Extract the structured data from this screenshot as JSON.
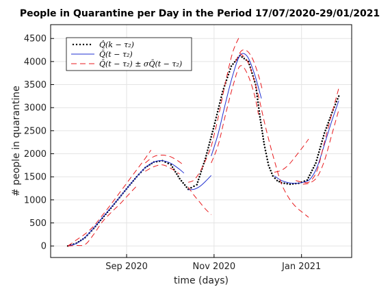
{
  "chart_data": {
    "type": "line",
    "title": "People in Quarantine per Day in the Period 17/07/2020-29/01/2021",
    "xlabel": "time (days)",
    "ylabel": "# people in quarantine",
    "x_ticks": [
      "Sep 2020",
      "Nov 2020",
      "Jan 2021"
    ],
    "y_ticks": [
      0,
      500,
      1000,
      1500,
      2000,
      2500,
      3000,
      3500,
      4000,
      4500
    ],
    "ylim": [
      -250,
      4800
    ],
    "grid": true,
    "legend_position": "top-left",
    "legend": [
      {
        "label": "Q̂(k − τ₂)",
        "style": "dotted",
        "color": "#000000"
      },
      {
        "label": "Q̄(t − τ₂)",
        "style": "solid",
        "color": "#1f2fd0"
      },
      {
        "label": "Q̄(t − τ₂) ± σQ̄(t − τ₂)",
        "style": "dashed",
        "color": "#e8191c"
      }
    ],
    "series": [
      {
        "style": "dotted",
        "color": "#000000",
        "x": [
          "2020-07-22",
          "2020-07-28",
          "2020-08-03",
          "2020-08-09",
          "2020-08-15",
          "2020-08-21",
          "2020-08-27",
          "2020-09-02",
          "2020-09-08",
          "2020-09-14",
          "2020-09-20",
          "2020-09-26",
          "2020-10-02",
          "2020-10-08",
          "2020-10-14",
          "2020-10-20",
          "2020-10-26",
          "2020-11-01",
          "2020-11-07",
          "2020-11-13",
          "2020-11-19",
          "2020-11-25",
          "2020-11-30",
          "2020-12-03",
          "2020-12-06",
          "2020-12-09",
          "2020-12-12",
          "2020-12-15",
          "2020-12-18",
          "2020-12-24",
          "2020-12-30",
          "2021-01-05",
          "2021-01-11",
          "2021-01-17",
          "2021-01-23",
          "2021-01-27"
        ],
        "y": [
          0,
          60,
          180,
          380,
          600,
          820,
          1050,
          1280,
          1500,
          1700,
          1820,
          1850,
          1760,
          1460,
          1230,
          1330,
          1900,
          2600,
          3350,
          3900,
          4130,
          4000,
          3500,
          2800,
          2200,
          1750,
          1520,
          1420,
          1370,
          1340,
          1360,
          1430,
          1800,
          2450,
          2950,
          3250
        ]
      },
      {
        "style": "solid",
        "color": "#1f2fd0",
        "x": [
          "2020-07-22",
          "2020-07-28",
          "2020-08-03",
          "2020-08-09",
          "2020-08-15",
          "2020-08-21",
          "2020-08-27",
          "2020-09-02",
          "2020-09-08",
          "2020-09-14",
          "2020-09-20",
          "2020-09-26",
          "2020-10-02",
          "2020-10-08",
          "2020-10-11"
        ],
        "y": [
          0,
          55,
          190,
          390,
          610,
          830,
          1050,
          1280,
          1500,
          1700,
          1820,
          1850,
          1790,
          1660,
          1580
        ]
      },
      {
        "style": "solid",
        "color": "#1f2fd0",
        "x": [
          "2020-10-14",
          "2020-10-18",
          "2020-10-22",
          "2020-10-26",
          "2020-10-30"
        ],
        "y": [
          1220,
          1230,
          1290,
          1400,
          1530
        ]
      },
      {
        "style": "solid",
        "color": "#1f2fd0",
        "x": [
          "2020-10-30",
          "2020-11-04",
          "2020-11-09",
          "2020-11-14",
          "2020-11-19",
          "2020-11-24",
          "2020-11-29",
          "2020-12-04"
        ],
        "y": [
          1950,
          2450,
          3100,
          3700,
          4130,
          4120,
          3750,
          3200
        ]
      },
      {
        "style": "solid",
        "color": "#1f2fd0",
        "x": [
          "2020-12-13",
          "2020-12-18",
          "2020-12-23",
          "2020-12-28",
          "2021-01-02",
          "2021-01-07",
          "2021-01-12",
          "2021-01-17",
          "2021-01-22",
          "2021-01-27"
        ],
        "y": [
          1520,
          1420,
          1370,
          1360,
          1380,
          1450,
          1720,
          2200,
          2700,
          3150
        ]
      },
      {
        "style": "dashed",
        "color": "#e8191c",
        "x": [
          "2020-07-22",
          "2020-07-28",
          "2020-08-03",
          "2020-08-09",
          "2020-08-15",
          "2020-08-21",
          "2020-08-27",
          "2020-09-02",
          "2020-09-08",
          "2020-09-14",
          "2020-09-18"
        ],
        "y": [
          0,
          130,
          260,
          430,
          660,
          900,
          1150,
          1400,
          1650,
          1900,
          2080
        ]
      },
      {
        "style": "dashed",
        "color": "#e8191c",
        "x": [
          "2020-07-22",
          "2020-07-28",
          "2020-08-03",
          "2020-08-09",
          "2020-08-15",
          "2020-08-21",
          "2020-08-27",
          "2020-09-02",
          "2020-09-08"
        ],
        "y": [
          0,
          10,
          30,
          250,
          520,
          720,
          900,
          1100,
          1300
        ]
      },
      {
        "style": "dashed",
        "color": "#e8191c",
        "x": [
          "2020-09-14",
          "2020-09-20",
          "2020-09-26",
          "2020-10-02",
          "2020-10-08",
          "2020-10-11"
        ],
        "y": [
          1800,
          1940,
          1970,
          1930,
          1820,
          1740
        ]
      },
      {
        "style": "dashed",
        "color": "#e8191c",
        "x": [
          "2020-09-14",
          "2020-09-20",
          "2020-09-26",
          "2020-10-02",
          "2020-10-08"
        ],
        "y": [
          1620,
          1720,
          1760,
          1680,
          1560
        ]
      },
      {
        "style": "dashed",
        "color": "#e8191c",
        "x": [
          "2020-10-14",
          "2020-10-18",
          "2020-10-22",
          "2020-10-26",
          "2020-10-30"
        ],
        "y": [
          1380,
          1430,
          1600,
          1850,
          2150
        ]
      },
      {
        "style": "dashed",
        "color": "#e8191c",
        "x": [
          "2020-10-14",
          "2020-10-18",
          "2020-10-22",
          "2020-10-26",
          "2020-10-30"
        ],
        "y": [
          1280,
          1100,
          950,
          800,
          680
        ]
      },
      {
        "style": "dashed",
        "color": "#e8191c",
        "x": [
          "2020-10-30",
          "2020-11-04",
          "2020-11-09",
          "2020-11-14",
          "2020-11-19"
        ],
        "y": [
          2150,
          2800,
          3550,
          4200,
          4560
        ]
      },
      {
        "style": "dashed",
        "color": "#e8191c",
        "x": [
          "2020-10-30",
          "2020-11-04",
          "2020-11-09",
          "2020-11-14",
          "2020-11-19",
          "2020-11-24",
          "2020-11-29",
          "2020-12-02"
        ],
        "y": [
          1800,
          2200,
          2850,
          3450,
          3900,
          3750,
          3300,
          2850
        ]
      },
      {
        "style": "dashed",
        "color": "#e8191c",
        "x": [
          "2020-11-16",
          "2020-11-20",
          "2020-11-24",
          "2020-11-28",
          "2020-12-02",
          "2020-12-05"
        ],
        "y": [
          4000,
          4230,
          4230,
          4050,
          3700,
          3350
        ]
      },
      {
        "style": "dashed",
        "color": "#e8191c",
        "x": [
          "2020-11-19",
          "2020-11-24",
          "2020-11-28",
          "2020-12-02",
          "2020-12-06",
          "2020-12-10",
          "2020-12-14",
          "2020-12-18",
          "2020-12-23",
          "2020-12-28",
          "2021-01-02",
          "2021-01-06"
        ],
        "y": [
          4180,
          4020,
          3700,
          3250,
          2700,
          2200,
          1750,
          1350,
          1050,
          850,
          720,
          620
        ]
      },
      {
        "style": "dashed",
        "color": "#e8191c",
        "x": [
          "2020-12-13",
          "2020-12-18",
          "2020-12-23",
          "2020-12-28",
          "2021-01-02",
          "2021-01-06"
        ],
        "y": [
          1600,
          1640,
          1760,
          1950,
          2150,
          2320
        ]
      },
      {
        "style": "dashed",
        "color": "#e8191c",
        "x": [
          "2020-12-28",
          "2021-01-02",
          "2021-01-07",
          "2021-01-12",
          "2021-01-17",
          "2021-01-22",
          "2021-01-27"
        ],
        "y": [
          1420,
          1380,
          1400,
          1650,
          2250,
          2850,
          3420
        ]
      },
      {
        "style": "dashed",
        "color": "#e8191c",
        "x": [
          "2021-01-02",
          "2021-01-07",
          "2021-01-12",
          "2021-01-17",
          "2021-01-22",
          "2021-01-27"
        ],
        "y": [
          1340,
          1370,
          1500,
          1850,
          2400,
          2950
        ]
      }
    ]
  }
}
